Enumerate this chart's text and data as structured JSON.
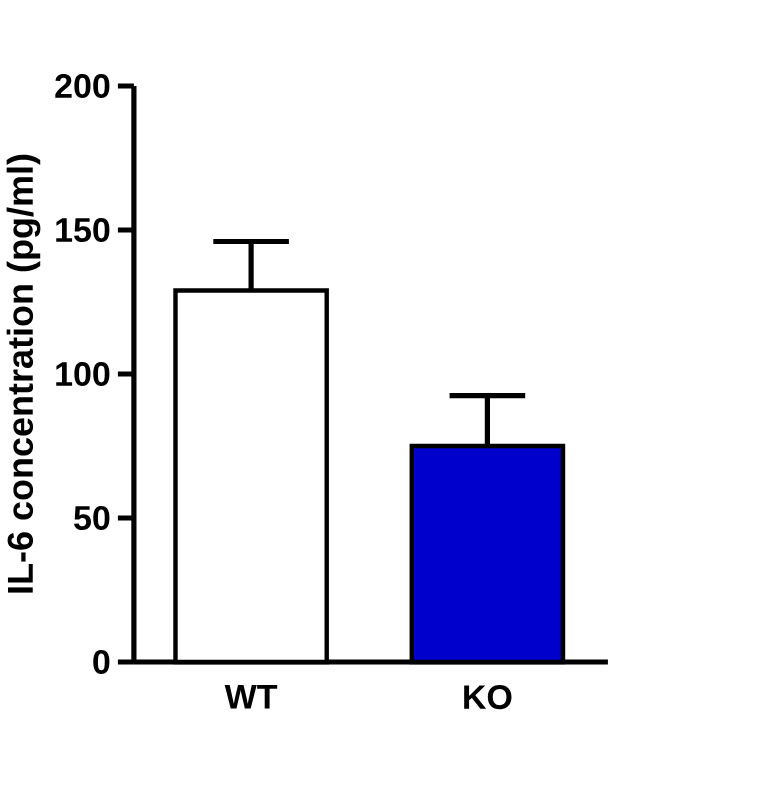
{
  "chart_data": {
    "type": "bar",
    "ylabel": "IL-6 concentration (pg/ml)",
    "categories": [
      "WT",
      "KO"
    ],
    "values": [
      129,
      75
    ],
    "colors": [
      "#ffffff",
      "#0000cc"
    ],
    "errors": [
      [
        129,
        146
      ],
      [
        75,
        92.5
      ]
    ],
    "ylim": [
      0,
      200
    ],
    "yticks": [
      0,
      50,
      100,
      150,
      200
    ],
    "grid": false
  }
}
